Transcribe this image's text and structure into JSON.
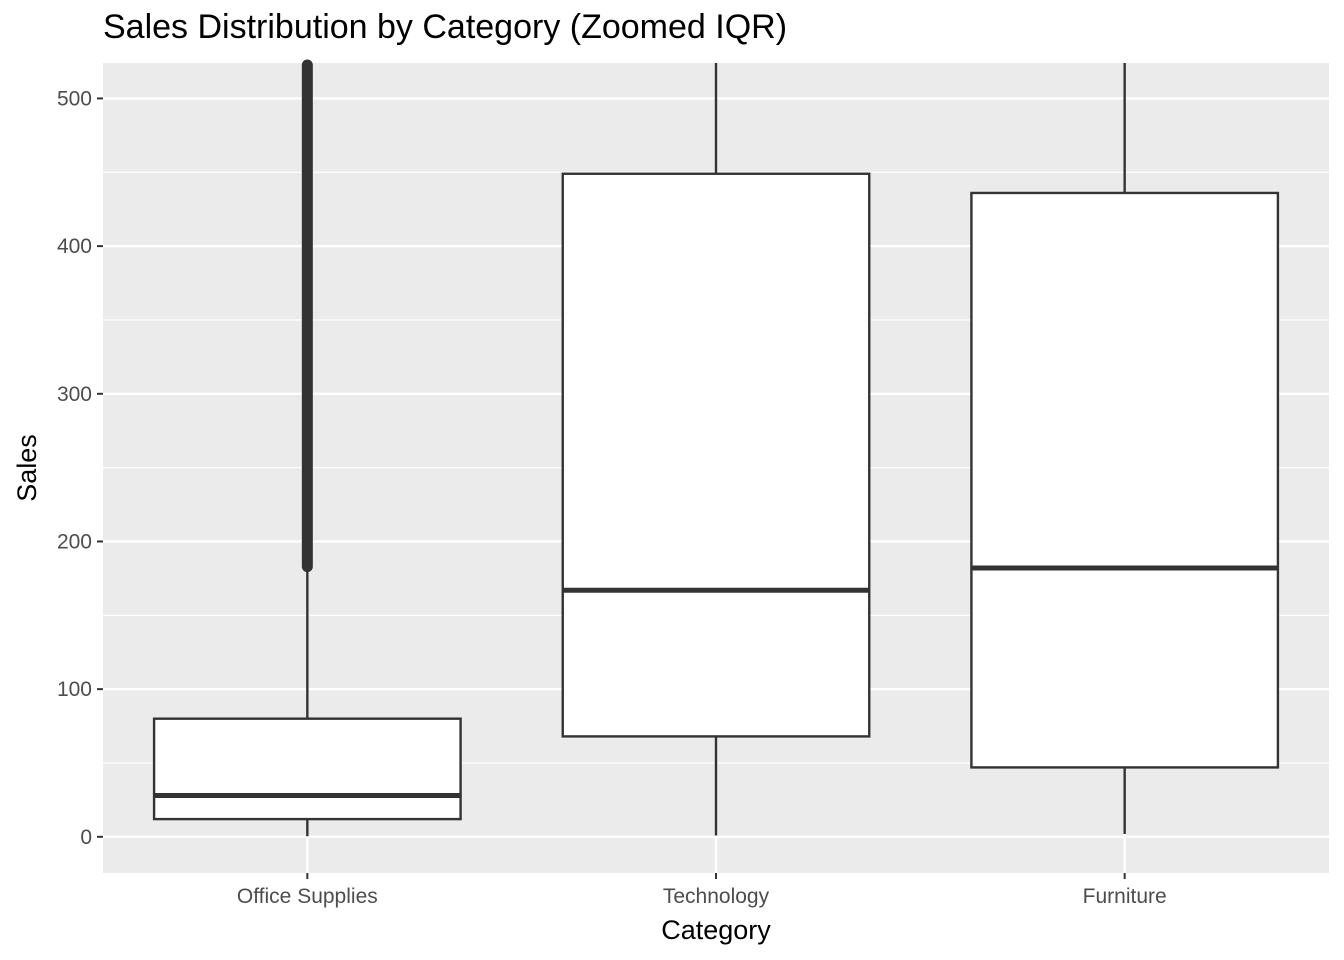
{
  "chart_data": {
    "type": "boxplot",
    "title": "Sales Distribution by Category (Zoomed IQR)",
    "xlabel": "Category",
    "ylabel": "Sales",
    "ylim": [
      -24.5,
      524
    ],
    "yticks": [
      0,
      100,
      200,
      300,
      400,
      500
    ],
    "grid": true,
    "categories": [
      "Office Supplies",
      "Technology",
      "Furniture"
    ],
    "boxes": [
      {
        "category": "Office Supplies",
        "lower_whisker": 0.4,
        "q1": 12,
        "median": 28,
        "q3": 80,
        "upper_whisker": 183,
        "outliers_from": 183,
        "outliers_to": 524
      },
      {
        "category": "Technology",
        "lower_whisker": 0.9,
        "q1": 68,
        "median": 167,
        "q3": 449,
        "upper_whisker": 524
      },
      {
        "category": "Furniture",
        "lower_whisker": 1.9,
        "q1": 47,
        "median": 182,
        "q3": 436,
        "upper_whisker": 524
      }
    ],
    "colors": {
      "panel": "#ebebeb",
      "grid": "#ffffff",
      "box_fill": "#ffffff",
      "box_line": "#333333"
    }
  }
}
